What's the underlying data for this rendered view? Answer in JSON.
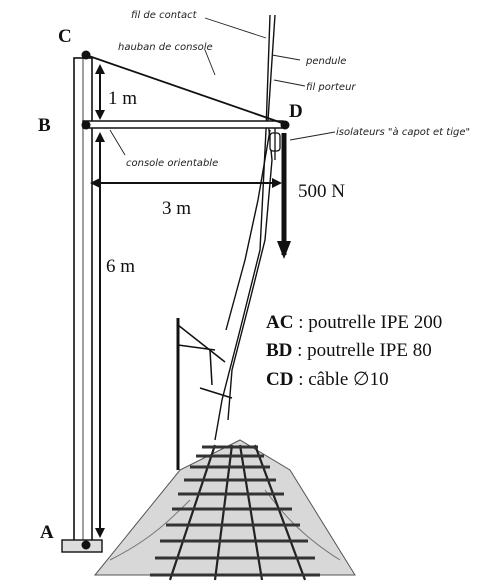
{
  "points": {
    "A": "A",
    "B": "B",
    "C": "C",
    "D": "D"
  },
  "dimensions": {
    "cb": "1 m",
    "bd": "3 m",
    "ab": "6 m"
  },
  "force": "500 N",
  "annotations": {
    "fil_contact": "fil de contact",
    "hauban": "hauban de console",
    "pendule": "pendule",
    "fil_porteur": "fil porteur",
    "isolateurs": "isolateurs \"à capot et tige\"",
    "console": "console orientable"
  },
  "legend": [
    {
      "key": "AC",
      "text": " : poutrelle IPE 200"
    },
    {
      "key": "BD",
      "text": " : poutrelle IPE 80"
    },
    {
      "key": "CD",
      "text": " : câble ∅10"
    }
  ],
  "colors": {
    "ink": "#111111",
    "ballast": "#6b6b6b"
  }
}
